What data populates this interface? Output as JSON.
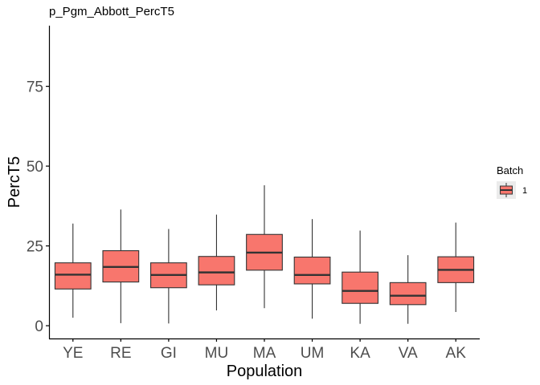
{
  "chart_data": {
    "type": "box",
    "title": "p_Pgm_Abbott_PercT5",
    "xlabel": "Population",
    "ylabel": "PercT5",
    "ylim": [
      -4,
      94
    ],
    "yticks": [
      0,
      25,
      50,
      75
    ],
    "categories": [
      "YE",
      "RE",
      "GI",
      "MU",
      "MA",
      "UM",
      "KA",
      "VA",
      "AK"
    ],
    "series": [
      {
        "name": "1",
        "stats": [
          {
            "whisker_low": 2.5,
            "q1": 11.5,
            "median": 16.0,
            "q3": 19.7,
            "whisker_high": 32.0
          },
          {
            "whisker_low": 0.8,
            "q1": 13.7,
            "median": 18.4,
            "q3": 23.5,
            "whisker_high": 36.4
          },
          {
            "whisker_low": 0.7,
            "q1": 11.9,
            "median": 15.9,
            "q3": 19.7,
            "whisker_high": 30.3
          },
          {
            "whisker_low": 4.8,
            "q1": 12.8,
            "median": 16.7,
            "q3": 21.7,
            "whisker_high": 34.8
          },
          {
            "whisker_low": 5.5,
            "q1": 17.4,
            "median": 22.9,
            "q3": 28.6,
            "whisker_high": 44.0
          },
          {
            "whisker_low": 2.2,
            "q1": 13.1,
            "median": 15.9,
            "q3": 21.5,
            "whisker_high": 33.4
          },
          {
            "whisker_low": 0.6,
            "q1": 7.0,
            "median": 10.9,
            "q3": 16.8,
            "whisker_high": 29.8
          },
          {
            "whisker_low": 0.6,
            "q1": 6.6,
            "median": 9.4,
            "q3": 13.5,
            "whisker_high": 22.1
          },
          {
            "whisker_low": 4.3,
            "q1": 13.5,
            "median": 17.5,
            "q3": 21.6,
            "whisker_high": 32.3
          }
        ]
      }
    ],
    "legend": {
      "title": "Batch",
      "entries": [
        "1"
      ],
      "position": "right"
    },
    "grid": false,
    "colors": {
      "box_fill": "#F8766D",
      "box_stroke": "#333333",
      "axis": "#000000",
      "tick_text": "#4d4d4d"
    }
  }
}
